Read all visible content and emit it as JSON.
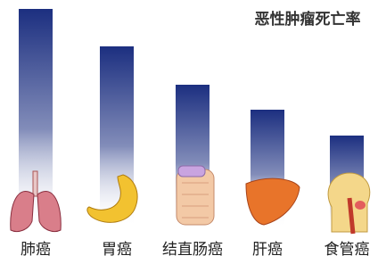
{
  "chart_data": {
    "type": "bar",
    "title": "恶性肿瘤死亡率",
    "categories": [
      "肺癌",
      "胃癌",
      "结直肠癌",
      "肝癌",
      "食管癌"
    ],
    "values": [
      245,
      203,
      160,
      132,
      103
    ],
    "color": "#1c2f80"
  }
}
